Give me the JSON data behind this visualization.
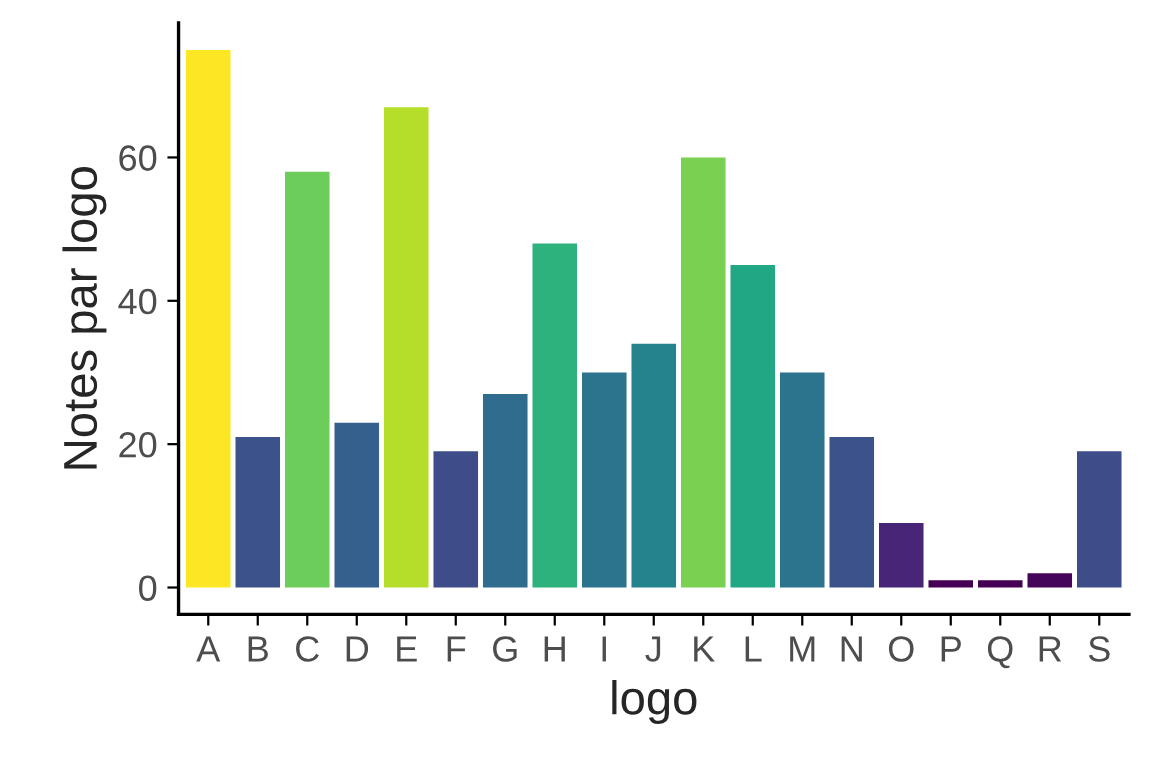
{
  "chart_data": {
    "type": "bar",
    "xlabel": "logo",
    "ylabel": "Notes par logo",
    "categories": [
      "A",
      "B",
      "C",
      "D",
      "E",
      "F",
      "G",
      "H",
      "I",
      "J",
      "K",
      "L",
      "M",
      "N",
      "O",
      "P",
      "Q",
      "R",
      "S"
    ],
    "values": [
      75,
      21,
      58,
      23,
      67,
      19,
      27,
      48,
      30,
      34,
      60,
      45,
      30,
      21,
      9,
      1,
      1,
      2,
      19
    ],
    "colors": [
      "#fde725",
      "#3b528b",
      "#6ccd5a",
      "#355f8d",
      "#b5de2b",
      "#3e4c8a",
      "#2f6c8e",
      "#2db27d",
      "#2c738e",
      "#25838e",
      "#7ad151",
      "#22a785",
      "#2c738e",
      "#3b528b",
      "#482576",
      "#440154",
      "#440154",
      "#450559",
      "#3e4c8a"
    ],
    "ylim": [
      -3.75,
      78.75
    ],
    "yticks": [
      0,
      20,
      40,
      60
    ],
    "grid": false,
    "legend": false
  }
}
